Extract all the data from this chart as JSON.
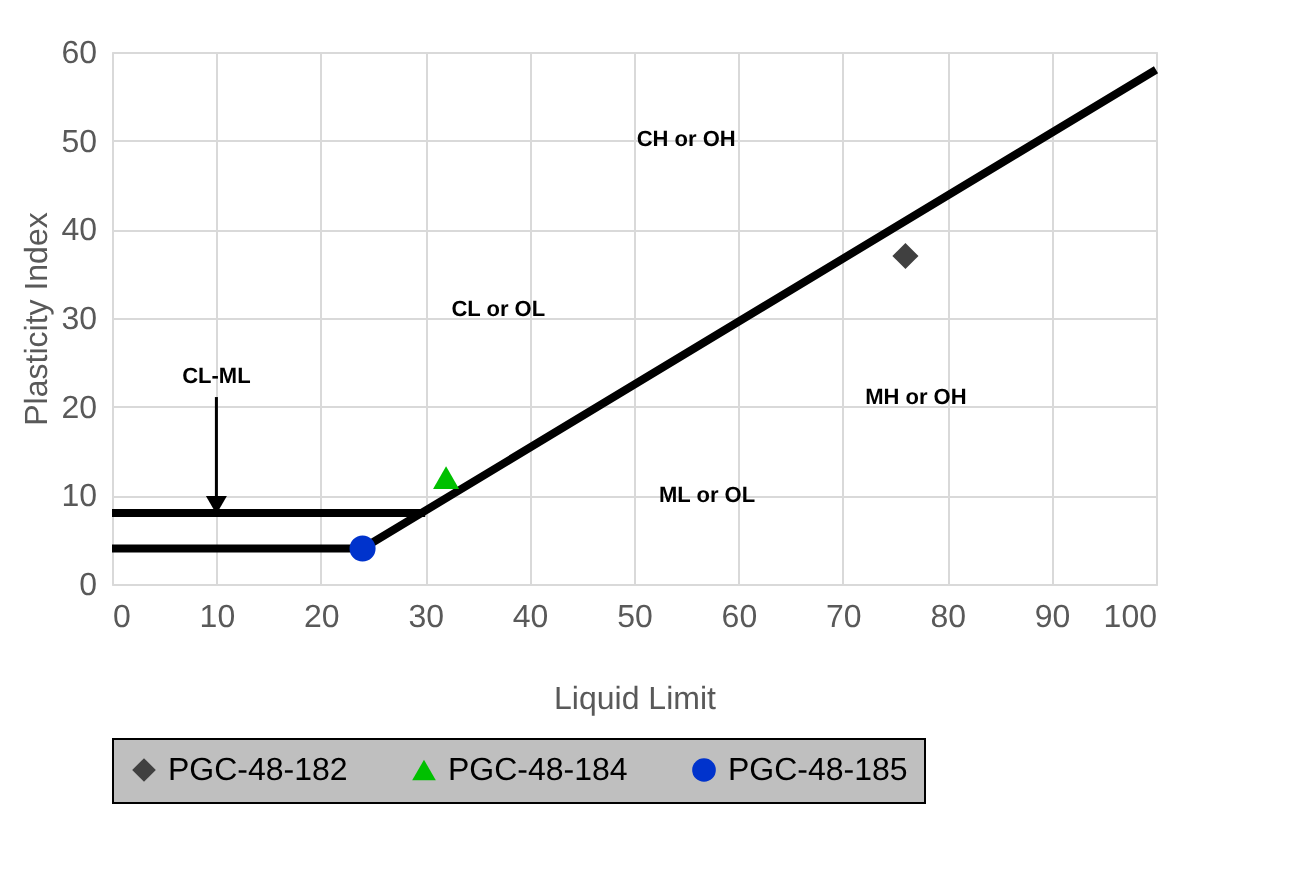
{
  "chart_data": {
    "type": "scatter",
    "xlabel": "Liquid Limit",
    "ylabel": "Plasticity Index",
    "xlim": [
      0,
      100
    ],
    "xticks": [
      0,
      10,
      20,
      30,
      40,
      50,
      60,
      70,
      80,
      90,
      100
    ],
    "ylim": [
      0,
      60
    ],
    "yticks": [
      0,
      10,
      20,
      30,
      40,
      50,
      60
    ],
    "grid": true,
    "legend": "bottom",
    "series": [
      {
        "type": "line",
        "color": "#000000",
        "line_style": "solid",
        "marker": "none",
        "x": [
          0,
          30
        ],
        "values": [
          8,
          8
        ]
      },
      {
        "type": "line",
        "color": "#000000",
        "line_style": "solid",
        "marker": "none",
        "x": [
          0,
          24,
          100
        ],
        "values": [
          4,
          4,
          58
        ]
      },
      {
        "name": "PGC-48-182",
        "color": "#404040",
        "marker": "diamond",
        "x": [
          76
        ],
        "values": [
          37
        ]
      },
      {
        "name": "PGC-48-184",
        "color": "#00c000",
        "marker": "triangle",
        "x": [
          32
        ],
        "values": [
          12
        ]
      },
      {
        "name": "PGC-48-185",
        "color": "#0033cc",
        "marker": "circle",
        "x": [
          24
        ],
        "values": [
          4
        ]
      }
    ],
    "annotations": [
      {
        "text": "CL-ML",
        "x": 10,
        "y": 8
      },
      "CH or OH",
      "CL or OL",
      "MH or OH",
      "ML or OL"
    ]
  }
}
